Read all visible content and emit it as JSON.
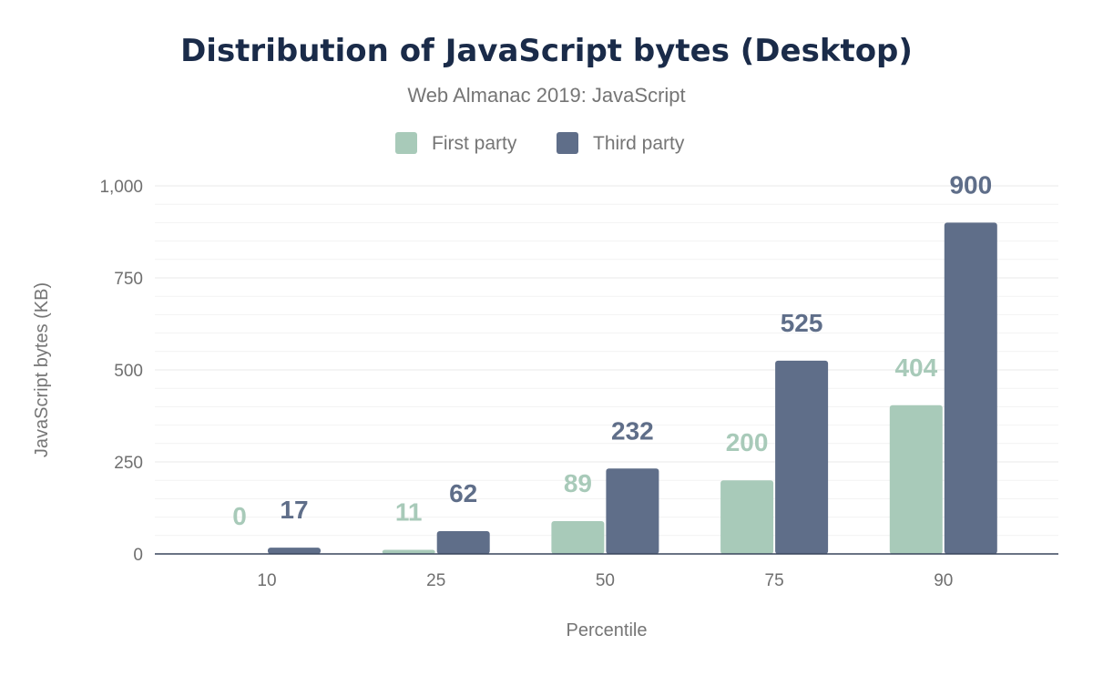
{
  "chart_data": {
    "type": "bar",
    "title": "Distribution of JavaScript bytes (Desktop)",
    "subtitle": "Web Almanac 2019: JavaScript",
    "xlabel": "Percentile",
    "ylabel": "JavaScript bytes (KB)",
    "categories": [
      "10",
      "25",
      "50",
      "75",
      "90"
    ],
    "series": [
      {
        "name": "First party",
        "color": "#a8cab9",
        "values": [
          0,
          11,
          89,
          200,
          404
        ]
      },
      {
        "name": "Third party",
        "color": "#5f6e89",
        "values": [
          17,
          62,
          232,
          525,
          900
        ]
      }
    ],
    "ylim": [
      0,
      1000
    ],
    "yticks": [
      0,
      250,
      500,
      750,
      1000
    ],
    "ytick_labels": [
      "0",
      "250",
      "500",
      "750",
      "1,000"
    ],
    "grid": true,
    "legend": "top-center",
    "data_labels": true
  }
}
